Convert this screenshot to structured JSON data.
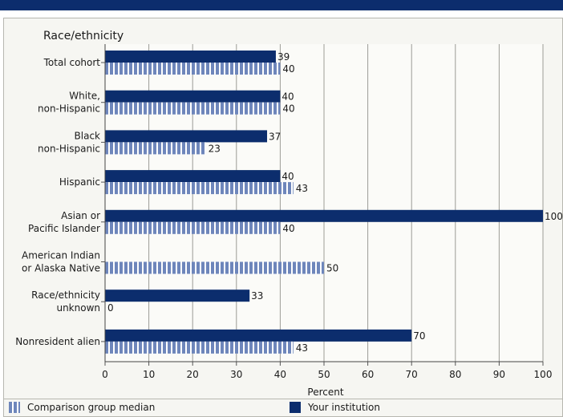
{
  "chart_data": {
    "type": "bar",
    "orientation": "horizontal",
    "title": "",
    "category_axis_title": "Race/ethnicity",
    "xlabel": "Percent",
    "xlim": [
      0,
      100
    ],
    "xticks": [
      0,
      10,
      20,
      30,
      40,
      50,
      60,
      70,
      80,
      90,
      100
    ],
    "grid": true,
    "categories": [
      [
        "Total cohort"
      ],
      [
        "White,",
        "non-Hispanic"
      ],
      [
        "Black",
        "non-Hispanic"
      ],
      [
        "Hispanic"
      ],
      [
        "Asian or",
        "Pacific Islander"
      ],
      [
        "American Indian",
        "or Alaska Native"
      ],
      [
        "Race/ethnicity",
        "unknown"
      ],
      [
        "Nonresident alien"
      ]
    ],
    "series": [
      {
        "name": "Your institution",
        "style": "solid",
        "color": "#0c2d6d",
        "values": [
          39,
          40,
          37,
          40,
          100,
          null,
          33,
          70
        ]
      },
      {
        "name": "Comparison group median",
        "style": "striped",
        "color": "#6e86bb",
        "values": [
          40,
          40,
          23,
          43,
          40,
          50,
          0,
          43
        ]
      }
    ],
    "legend_position": "bottom"
  }
}
